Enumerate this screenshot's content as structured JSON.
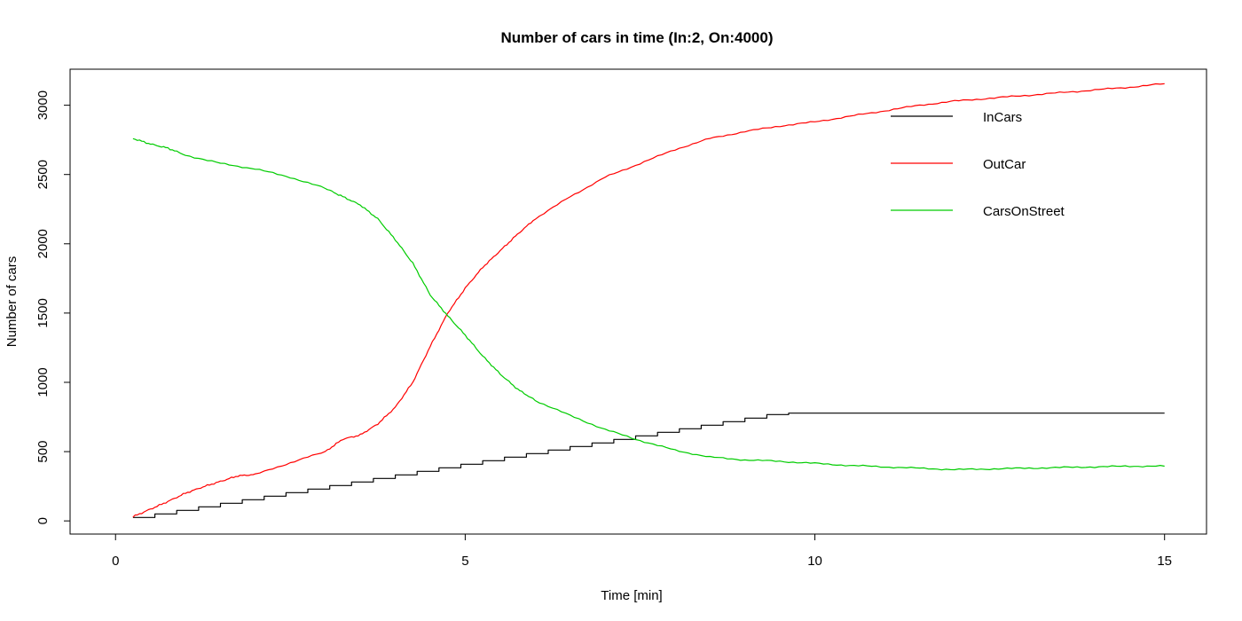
{
  "chart_data": {
    "type": "line",
    "title": "Number of cars in time (In:2, On:4000)",
    "xlabel": "Time [min]",
    "ylabel": "Number of cars",
    "xlim": [
      -0.65,
      15.6
    ],
    "ylim": [
      -95,
      3260
    ],
    "x_ticks": [
      0,
      5,
      10,
      15
    ],
    "y_ticks": [
      0,
      500,
      1000,
      1500,
      2000,
      2500,
      3000
    ],
    "legend_position": "top-right",
    "grid": false,
    "series": [
      {
        "name": "InCars",
        "color": "#000000",
        "step_time": 0.3125,
        "step_size": 25.6,
        "start": 0.25,
        "end": 15,
        "start_value": 25,
        "end_value": 778
      },
      {
        "name": "OutCar",
        "color": "#ff0000",
        "x": [
          0.25,
          0.5,
          0.75,
          1,
          1.25,
          1.5,
          1.75,
          2,
          2.5,
          3,
          3.25,
          3.5,
          3.75,
          4,
          4.25,
          4.5,
          4.75,
          5,
          5.25,
          5.5,
          5.75,
          6,
          6.5,
          7,
          7.5,
          8,
          8.5,
          9,
          9.5,
          10,
          10.5,
          11,
          11.5,
          12,
          12.5,
          13,
          13.5,
          14,
          14.5,
          15
        ],
        "y": [
          30,
          85,
          140,
          200,
          245,
          285,
          325,
          335,
          420,
          500,
          590,
          620,
          700,
          820,
          1000,
          1260,
          1500,
          1680,
          1830,
          1950,
          2070,
          2180,
          2340,
          2480,
          2580,
          2680,
          2760,
          2810,
          2850,
          2880,
          2920,
          2960,
          3000,
          3030,
          3050,
          3070,
          3090,
          3110,
          3130,
          3155
        ]
      },
      {
        "name": "CarsOnStreet",
        "color": "#00cc00",
        "x": [
          0.25,
          0.5,
          0.75,
          1,
          1.5,
          2,
          2.5,
          3,
          3.25,
          3.5,
          3.75,
          4,
          4.25,
          4.5,
          4.75,
          5,
          5.25,
          5.5,
          5.75,
          6,
          6.5,
          7,
          7.5,
          8,
          8.5,
          9,
          9.5,
          10,
          10.5,
          11,
          11.5,
          12,
          12.5,
          13,
          13.5,
          14,
          14.5,
          15
        ],
        "y": [
          2760,
          2720,
          2690,
          2640,
          2580,
          2540,
          2480,
          2400,
          2340,
          2280,
          2180,
          2030,
          1860,
          1630,
          1480,
          1340,
          1190,
          1060,
          950,
          870,
          760,
          660,
          580,
          510,
          460,
          440,
          430,
          415,
          400,
          390,
          380,
          370,
          375,
          380,
          385,
          390,
          395,
          395
        ]
      }
    ]
  }
}
